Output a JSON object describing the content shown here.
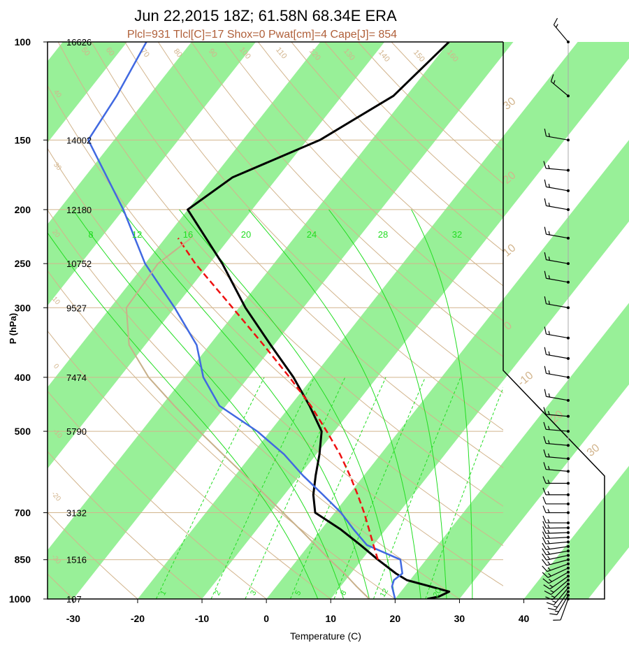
{
  "chart_data": {
    "type": "line",
    "title": "Jun 22,2015 18Z; 61.58N 68.34E ERA",
    "subtitle": "Plcl=931 Tlcl[C]=17 Shox=0 Pwat[cm]=4 Cape[J]= 854",
    "xlabel": "Temperature (C)",
    "ylabel": "P (hPa)",
    "xlim": [
      -34,
      52
    ],
    "ylim": [
      1000,
      100
    ],
    "y_scale": "log",
    "x_ticks": [
      "-30",
      "-20",
      "-10",
      "0",
      "10",
      "20",
      "30",
      "40"
    ],
    "pressure_levels": [
      "100",
      "150",
      "200",
      "250",
      "300",
      "400",
      "500",
      "700",
      "850",
      "1000"
    ],
    "heights": [
      "16626",
      "14002",
      "12180",
      "10752",
      "9527",
      "7474",
      "5790",
      "3132",
      "1516",
      "107"
    ],
    "height_pressures": [
      100,
      150,
      200,
      250,
      300,
      400,
      500,
      700,
      850,
      1000
    ],
    "dry_adiabat_labels": [
      "-30",
      "-20",
      "-10",
      "0",
      "10",
      "20",
      "30",
      "40",
      "50",
      "60",
      "70",
      "80",
      "90",
      "100",
      "110",
      "120",
      "130",
      "140",
      "150",
      "160"
    ],
    "moist_adiabat_labels": [
      "8",
      "12",
      "16",
      "20",
      "24",
      "28",
      "32"
    ],
    "mixing_ratio_labels": [
      "1",
      "2",
      "3",
      "5",
      "8",
      "12",
      "20"
    ],
    "wind_speed_labels": [
      "-10",
      "0",
      "10",
      "20",
      "30"
    ],
    "series": [
      {
        "color": "#000000",
        "pressure": [
          1000,
          990,
          970,
          950,
          925,
          900,
          850,
          800,
          750,
          700,
          650,
          600,
          550,
          500,
          450,
          400,
          350,
          300,
          250,
          200,
          175,
          150,
          125,
          100
        ],
        "temp": [
          25,
          26.5,
          27.5,
          24,
          19.5,
          17,
          12.5,
          8,
          3,
          -3,
          -5.5,
          -7.5,
          -9.5,
          -12,
          -17,
          -23,
          -30.5,
          -39,
          -48,
          -60,
          -57,
          -48,
          -42,
          -40
        ]
      },
      {
        "color": "#4169e1",
        "pressure": [
          1000,
          975,
          950,
          925,
          900,
          850,
          800,
          750,
          700,
          650,
          600,
          550,
          500,
          450,
          400,
          350,
          300,
          250,
          200,
          150,
          125,
          100
        ],
        "temp": [
          20,
          19,
          18,
          17.5,
          18,
          16,
          9,
          5,
          1,
          -4,
          -9.5,
          -15,
          -22,
          -31,
          -37,
          -42,
          -50,
          -60,
          -70,
          -84,
          -85,
          -87
        ]
      },
      {
        "color": "#ee1111",
        "dashed": true,
        "pressure": [
          850,
          800,
          750,
          700,
          650,
          600,
          550,
          500,
          450,
          400,
          350,
          300,
          250,
          225
        ],
        "temp": [
          12.5,
          10,
          7.4,
          4.6,
          1.4,
          -2.2,
          -6.3,
          -11.2,
          -16.8,
          -23.6,
          -31.6,
          -41,
          -52.2,
          -58
        ]
      },
      {
        "color": "#c8b08a",
        "pressure": [
          1000,
          950,
          900,
          850,
          800,
          750,
          700,
          650,
          600,
          550,
          500,
          450,
          400,
          350,
          300,
          250,
          225
        ],
        "temp": [
          16,
          12.5,
          9,
          5,
          1,
          -3.3,
          -8,
          -13,
          -18.5,
          -24.5,
          -31,
          -38,
          -45.5,
          -52.5,
          -57.5,
          -58,
          -56
        ]
      }
    ],
    "wind_barbs": [
      {
        "p": 1000,
        "dir": 200,
        "speed": 10
      },
      {
        "p": 985,
        "dir": 210,
        "speed": 15
      },
      {
        "p": 970,
        "dir": 215,
        "speed": 15
      },
      {
        "p": 955,
        "dir": 220,
        "speed": 15
      },
      {
        "p": 940,
        "dir": 225,
        "speed": 15
      },
      {
        "p": 925,
        "dir": 230,
        "speed": 15
      },
      {
        "p": 910,
        "dir": 235,
        "speed": 15
      },
      {
        "p": 895,
        "dir": 240,
        "speed": 15
      },
      {
        "p": 880,
        "dir": 245,
        "speed": 15
      },
      {
        "p": 865,
        "dir": 250,
        "speed": 15
      },
      {
        "p": 850,
        "dir": 255,
        "speed": 15
      },
      {
        "p": 835,
        "dir": 258,
        "speed": 15
      },
      {
        "p": 820,
        "dir": 260,
        "speed": 15
      },
      {
        "p": 805,
        "dir": 262,
        "speed": 15
      },
      {
        "p": 790,
        "dir": 265,
        "speed": 15
      },
      {
        "p": 775,
        "dir": 267,
        "speed": 15
      },
      {
        "p": 760,
        "dir": 268,
        "speed": 15
      },
      {
        "p": 745,
        "dir": 269,
        "speed": 15
      },
      {
        "p": 730,
        "dir": 270,
        "speed": 15
      },
      {
        "p": 700,
        "dir": 270,
        "speed": 15
      },
      {
        "p": 675,
        "dir": 270,
        "speed": 10
      },
      {
        "p": 650,
        "dir": 270,
        "speed": 15
      },
      {
        "p": 620,
        "dir": 270,
        "speed": 15
      },
      {
        "p": 590,
        "dir": 275,
        "speed": 15
      },
      {
        "p": 560,
        "dir": 275,
        "speed": 15
      },
      {
        "p": 530,
        "dir": 275,
        "speed": 15
      },
      {
        "p": 500,
        "dir": 275,
        "speed": 15
      },
      {
        "p": 470,
        "dir": 275,
        "speed": 15
      },
      {
        "p": 440,
        "dir": 280,
        "speed": 15
      },
      {
        "p": 400,
        "dir": 280,
        "speed": 15
      },
      {
        "p": 370,
        "dir": 280,
        "speed": 15
      },
      {
        "p": 340,
        "dir": 280,
        "speed": 15
      },
      {
        "p": 300,
        "dir": 280,
        "speed": 15
      },
      {
        "p": 270,
        "dir": 280,
        "speed": 15
      },
      {
        "p": 250,
        "dir": 280,
        "speed": 15
      },
      {
        "p": 225,
        "dir": 280,
        "speed": 15
      },
      {
        "p": 200,
        "dir": 280,
        "speed": 15
      },
      {
        "p": 185,
        "dir": 280,
        "speed": 15
      },
      {
        "p": 170,
        "dir": 275,
        "speed": 15
      },
      {
        "p": 150,
        "dir": 280,
        "speed": 15
      },
      {
        "p": 125,
        "dir": 310,
        "speed": 15
      },
      {
        "p": 100,
        "dir": 320,
        "speed": 15
      }
    ]
  }
}
